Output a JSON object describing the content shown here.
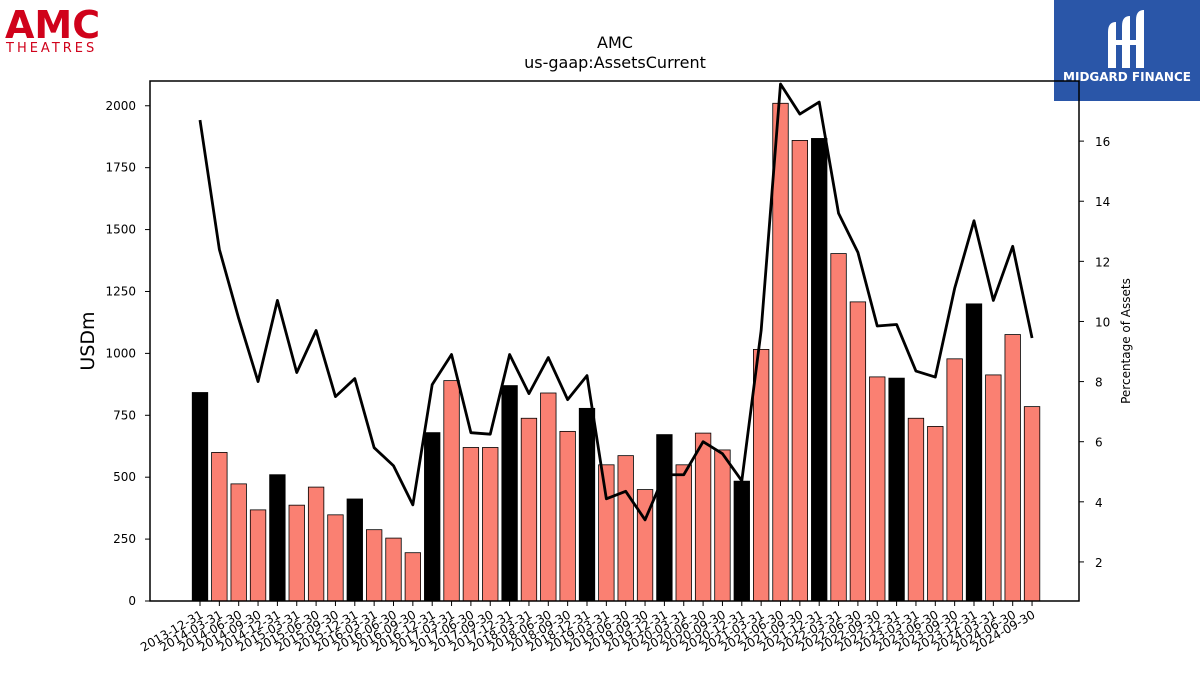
{
  "branding": {
    "company_logo_text": "AMC",
    "company_logo_subtext": "THEATRES",
    "company_logo_color": "#d0021b",
    "publisher_logo_text": "MIDGARD FINANCE",
    "publisher_logo_bg": "#2a56a8"
  },
  "chart_data": {
    "type": "bar",
    "title": "AMC",
    "subtitle": "us-gaap:AssetsCurrent",
    "ylabel": "USDm",
    "y2label": "Percentage of Assets",
    "ylim": [
      0,
      2100
    ],
    "y2lim": [
      0.7,
      18.0
    ],
    "yticks": [
      0,
      250,
      500,
      750,
      1000,
      1250,
      1500,
      1750,
      2000
    ],
    "y2ticks": [
      2,
      4,
      6,
      8,
      10,
      12,
      14,
      16
    ],
    "bar_color": "#fa8072",
    "highlight_color": "#000000",
    "line_color": "#000000",
    "grid": false,
    "categories": [
      "2013-12-31",
      "2014-03-31",
      "2014-06-30",
      "2014-09-30",
      "2014-12-31",
      "2015-03-31",
      "2015-06-30",
      "2015-09-30",
      "2015-12-31",
      "2016-03-31",
      "2016-06-30",
      "2016-09-30",
      "2016-12-31",
      "2017-03-31",
      "2017-06-30",
      "2017-09-30",
      "2017-12-31",
      "2018-03-31",
      "2018-06-30",
      "2018-09-30",
      "2018-12-31",
      "2019-03-31",
      "2019-06-30",
      "2019-09-30",
      "2019-12-31",
      "2020-03-31",
      "2020-06-30",
      "2020-09-30",
      "2020-12-31",
      "2021-03-31",
      "2021-06-30",
      "2021-09-30",
      "2021-12-31",
      "2022-03-31",
      "2022-06-30",
      "2022-09-30",
      "2022-12-31",
      "2023-03-31",
      "2023-06-30",
      "2023-09-30",
      "2023-12-31",
      "2024-03-31",
      "2024-06-30",
      "2024-09-30"
    ],
    "values": [
      842,
      600,
      473,
      368,
      510,
      387,
      460,
      348,
      412,
      288,
      254,
      195,
      680,
      890,
      620,
      620,
      870,
      738,
      840,
      685,
      778,
      550,
      587,
      450,
      672,
      550,
      678,
      610,
      484,
      1016,
      2010,
      1860,
      1868,
      1403,
      1208,
      905,
      900,
      738,
      705,
      978,
      1200,
      913,
      1076,
      785
    ],
    "highlighted": [
      true,
      false,
      false,
      false,
      true,
      false,
      false,
      false,
      true,
      false,
      false,
      false,
      true,
      false,
      false,
      false,
      true,
      false,
      false,
      false,
      true,
      false,
      false,
      false,
      true,
      false,
      false,
      false,
      true,
      false,
      false,
      false,
      true,
      false,
      false,
      false,
      true,
      false,
      false,
      false,
      true,
      false,
      false,
      false
    ],
    "series": [
      {
        "name": "Percentage of Assets",
        "axis": "right",
        "values": [
          16.7,
          12.4,
          10.1,
          8.0,
          10.7,
          8.3,
          9.7,
          7.5,
          8.1,
          5.8,
          5.2,
          3.9,
          7.9,
          8.9,
          6.3,
          6.25,
          8.9,
          7.6,
          8.8,
          7.4,
          8.2,
          4.1,
          4.35,
          3.4,
          4.9,
          4.9,
          6.0,
          5.6,
          4.7,
          9.7,
          17.9,
          16.9,
          17.3,
          13.6,
          12.3,
          9.85,
          9.9,
          8.35,
          8.15,
          11.1,
          13.35,
          10.7,
          12.5,
          9.45
        ]
      }
    ]
  }
}
